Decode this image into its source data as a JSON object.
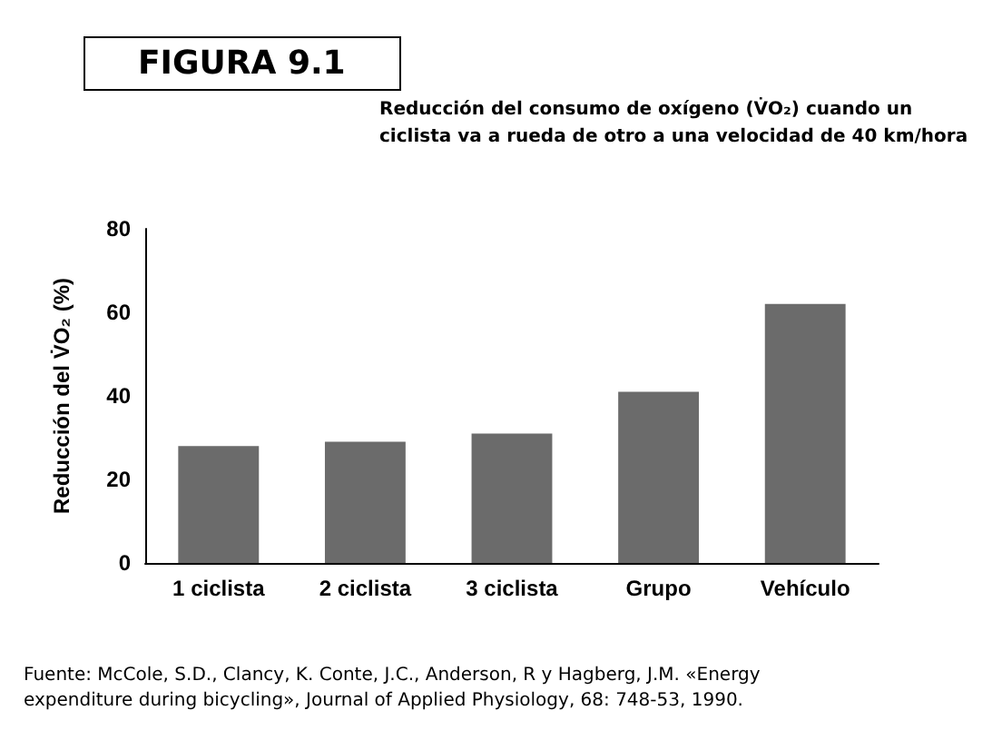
{
  "chart_data": {
    "type": "bar",
    "title": "FIGURA 9.1",
    "subtitle": "Reducción del consumo de oxígeno (V̇O₂) cuando un ciclista va a rueda de otro a una velocidad de 40 km/hora",
    "ylabel": "Reducción del V̇O₂ (%)",
    "categories": [
      "1 ciclista",
      "2 ciclista",
      "3 ciclista",
      "Grupo",
      "Vehículo"
    ],
    "values": [
      28,
      29,
      31,
      41,
      62
    ],
    "color": "#6b6b6b",
    "ylim": [
      0,
      80
    ],
    "yticks": [
      0,
      20,
      40,
      60,
      80
    ],
    "grid": false,
    "annotations": [
      "Fuente: McCole, S.D., Clancy, K. Conte, J.C., Anderson, R y Hagberg, J.M. «Energy expenditure during bicycling», Journal of Applied Physiology, 68: 748-53, 1990."
    ]
  }
}
